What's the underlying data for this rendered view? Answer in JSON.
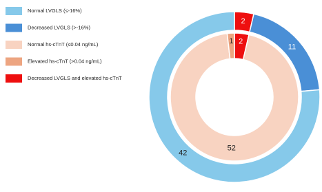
{
  "chart_data": {
    "type": "donut",
    "legend": [
      {
        "name": "Normal LVGLS (≤-16%)",
        "color": "#86c9ea"
      },
      {
        "name": "Decreased LVGLS (>-16%)",
        "color": "#4a8fd6"
      },
      {
        "name": "Normal hs-cTnT (≤0.04 ng/mL)",
        "color": "#f8d3c1"
      },
      {
        "name": "Elevated hs-cTnT (>0.04 ng/mL)",
        "color": "#eda581"
      },
      {
        "name": "Decreased LVGLS and elevated hs-cTnT",
        "color": "#ee0f0f"
      }
    ],
    "rings": [
      {
        "values": [
          2,
          11,
          42
        ],
        "colors": [
          "#ee0f0f",
          "#4a8fd6",
          "#86c9ea"
        ]
      },
      {
        "values": [
          2,
          52,
          1
        ],
        "colors": [
          "#ee0f0f",
          "#f8d3c1",
          "#eda581"
        ]
      }
    ]
  }
}
